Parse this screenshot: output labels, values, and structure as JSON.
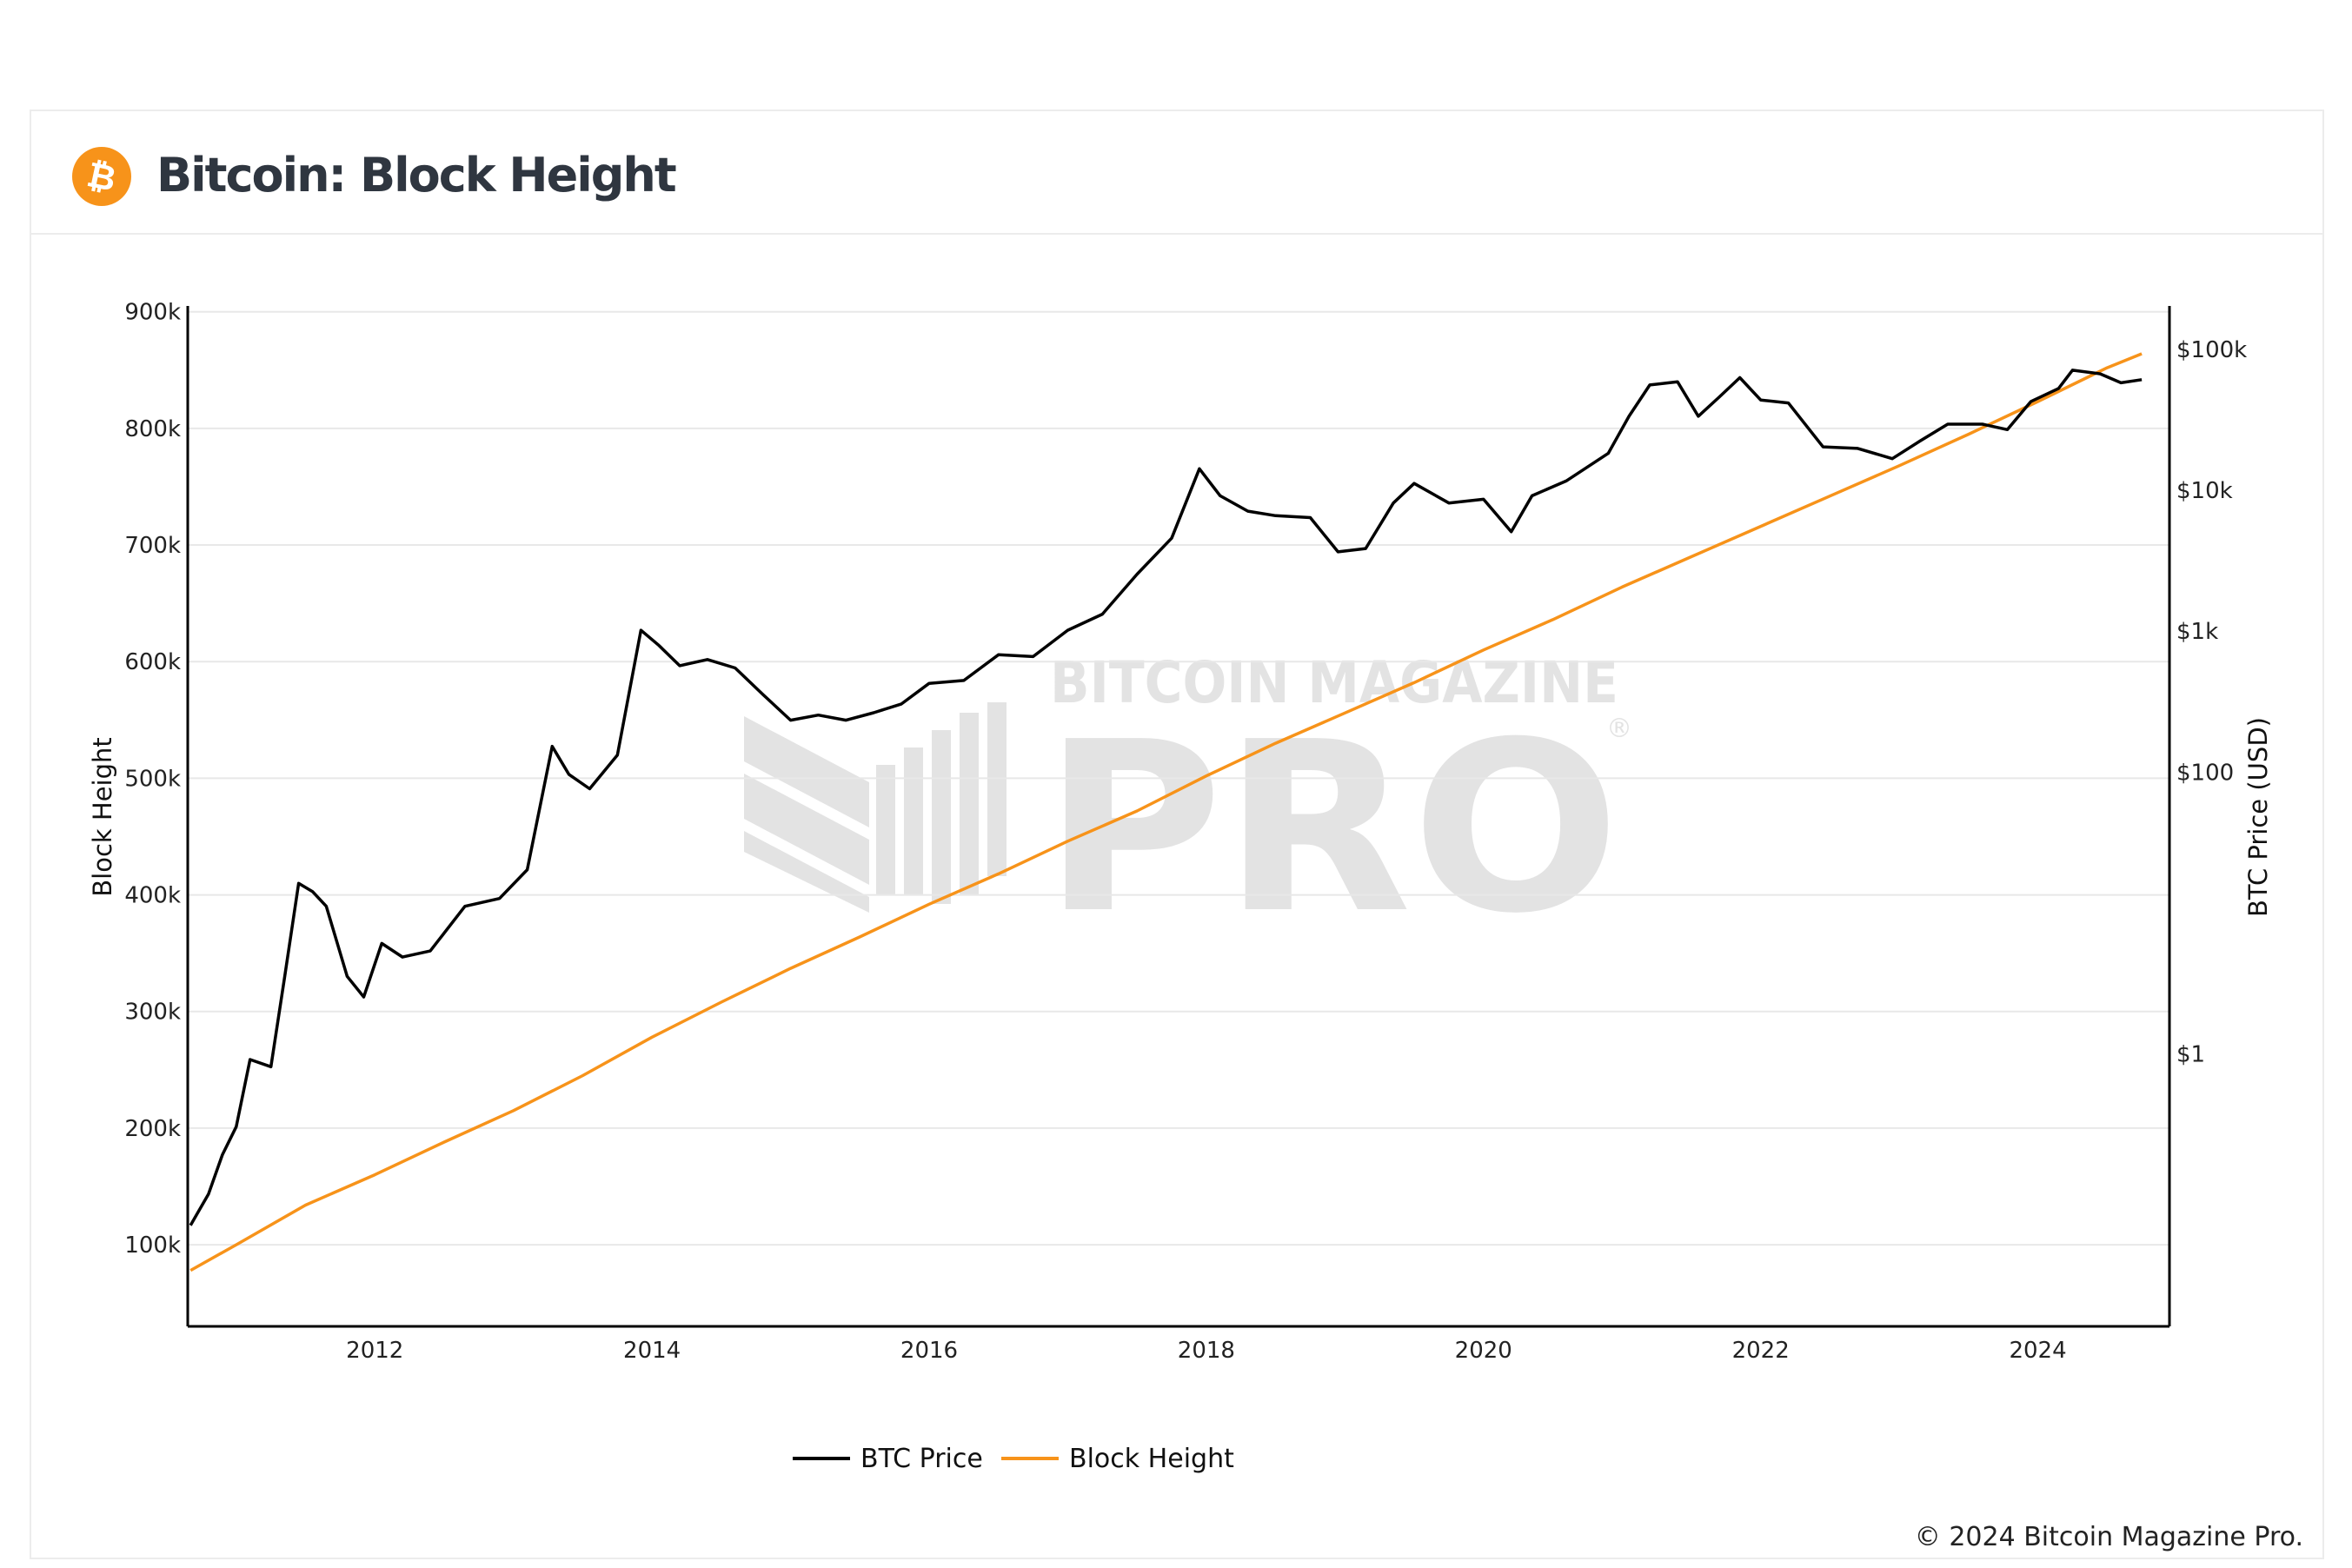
{
  "header": {
    "title": "Bitcoin: Block Height",
    "logo_icon": "bitcoin-logo-icon",
    "logo_color": "#f7931a"
  },
  "footer": {
    "copyright": "© 2024 Bitcoin Magazine Pro."
  },
  "watermark": {
    "line1": "BITCOIN MAGAZINE",
    "line2": "PRO",
    "mark": "®",
    "color": "#e3e3e3"
  },
  "chart_data": {
    "type": "line",
    "title": "",
    "xlabel": "",
    "ylabel_left": "Block Height",
    "ylabel_right": "BTC Price (USD)",
    "x_ticks": [
      "2012",
      "2014",
      "2016",
      "2018",
      "2020",
      "2022",
      "2024"
    ],
    "x_range": [
      2010.65,
      2024.95
    ],
    "y_left_ticks": [
      "100k",
      "200k",
      "300k",
      "400k",
      "500k",
      "600k",
      "700k",
      "800k",
      "900k"
    ],
    "y_left_tick_values": [
      100000,
      200000,
      300000,
      400000,
      500000,
      600000,
      700000,
      800000,
      900000
    ],
    "y_left_range": [
      30000,
      905000
    ],
    "y_right_ticks": [
      "$1",
      "$100",
      "$1k",
      "$10k",
      "$100k"
    ],
    "y_right_tick_values": [
      1,
      100,
      1000,
      10000,
      100000
    ],
    "y_right_scale": "log",
    "y_right_range": [
      0.0115,
      200000
    ],
    "legend": {
      "placement": "bottom-center",
      "items": [
        {
          "label": "BTC Price",
          "color": "#000000"
        },
        {
          "label": "Block Height",
          "color": "#f7931a"
        }
      ]
    },
    "grid": "horizontal",
    "series": [
      {
        "name": "Block Height",
        "axis": "left",
        "color": "#f7931a",
        "points": [
          [
            2010.67,
            78000
          ],
          [
            2011.0,
            100000
          ],
          [
            2011.5,
            134000
          ],
          [
            2012.0,
            160000
          ],
          [
            2012.5,
            188000
          ],
          [
            2013.0,
            215000
          ],
          [
            2013.5,
            245000
          ],
          [
            2014.0,
            278000
          ],
          [
            2014.5,
            308000
          ],
          [
            2015.0,
            337000
          ],
          [
            2015.5,
            364000
          ],
          [
            2016.0,
            392000
          ],
          [
            2016.5,
            418000
          ],
          [
            2017.0,
            446000
          ],
          [
            2017.5,
            472000
          ],
          [
            2018.0,
            502000
          ],
          [
            2018.5,
            530000
          ],
          [
            2019.0,
            556000
          ],
          [
            2019.5,
            582000
          ],
          [
            2020.0,
            610000
          ],
          [
            2020.5,
            636000
          ],
          [
            2021.0,
            664000
          ],
          [
            2021.5,
            690000
          ],
          [
            2022.0,
            716000
          ],
          [
            2022.5,
            742000
          ],
          [
            2023.0,
            768000
          ],
          [
            2023.5,
            795000
          ],
          [
            2024.0,
            823000
          ],
          [
            2024.5,
            852000
          ],
          [
            2024.75,
            864000
          ]
        ]
      },
      {
        "name": "BTC Price",
        "axis": "right",
        "color": "#000000",
        "points": [
          [
            2010.67,
            0.06
          ],
          [
            2010.8,
            0.1
          ],
          [
            2010.9,
            0.19
          ],
          [
            2011.0,
            0.3
          ],
          [
            2011.1,
            0.9
          ],
          [
            2011.25,
            0.8
          ],
          [
            2011.35,
            3.5
          ],
          [
            2011.45,
            16
          ],
          [
            2011.55,
            14
          ],
          [
            2011.65,
            11
          ],
          [
            2011.8,
            3.5
          ],
          [
            2011.92,
            2.5
          ],
          [
            2012.05,
            6
          ],
          [
            2012.2,
            4.8
          ],
          [
            2012.4,
            5.3
          ],
          [
            2012.65,
            11
          ],
          [
            2012.9,
            12.5
          ],
          [
            2013.1,
            20
          ],
          [
            2013.28,
            150
          ],
          [
            2013.4,
            95
          ],
          [
            2013.55,
            75
          ],
          [
            2013.75,
            130
          ],
          [
            2013.92,
            1000
          ],
          [
            2014.05,
            780
          ],
          [
            2014.2,
            560
          ],
          [
            2014.4,
            620
          ],
          [
            2014.6,
            540
          ],
          [
            2014.8,
            350
          ],
          [
            2015.0,
            230
          ],
          [
            2015.2,
            250
          ],
          [
            2015.4,
            230
          ],
          [
            2015.6,
            260
          ],
          [
            2015.8,
            300
          ],
          [
            2016.0,
            420
          ],
          [
            2016.25,
            440
          ],
          [
            2016.5,
            670
          ],
          [
            2016.75,
            650
          ],
          [
            2017.0,
            1000
          ],
          [
            2017.25,
            1300
          ],
          [
            2017.5,
            2500
          ],
          [
            2017.75,
            4500
          ],
          [
            2017.95,
            14000
          ],
          [
            2018.1,
            9000
          ],
          [
            2018.3,
            7000
          ],
          [
            2018.5,
            6500
          ],
          [
            2018.75,
            6300
          ],
          [
            2018.95,
            3600
          ],
          [
            2019.15,
            3800
          ],
          [
            2019.35,
            8000
          ],
          [
            2019.5,
            11000
          ],
          [
            2019.75,
            8000
          ],
          [
            2020.0,
            8500
          ],
          [
            2020.2,
            5000
          ],
          [
            2020.35,
            9000
          ],
          [
            2020.6,
            11500
          ],
          [
            2020.9,
            18000
          ],
          [
            2021.05,
            33000
          ],
          [
            2021.2,
            55000
          ],
          [
            2021.4,
            58000
          ],
          [
            2021.55,
            33000
          ],
          [
            2021.7,
            45000
          ],
          [
            2021.85,
            62000
          ],
          [
            2022.0,
            43000
          ],
          [
            2022.2,
            41000
          ],
          [
            2022.45,
            20000
          ],
          [
            2022.7,
            19500
          ],
          [
            2022.95,
            16500
          ],
          [
            2023.15,
            22000
          ],
          [
            2023.35,
            29000
          ],
          [
            2023.6,
            29000
          ],
          [
            2023.78,
            26500
          ],
          [
            2023.95,
            42000
          ],
          [
            2024.15,
            52000
          ],
          [
            2024.25,
            70000
          ],
          [
            2024.45,
            66000
          ],
          [
            2024.6,
            57000
          ],
          [
            2024.75,
            60000
          ]
        ]
      }
    ]
  }
}
